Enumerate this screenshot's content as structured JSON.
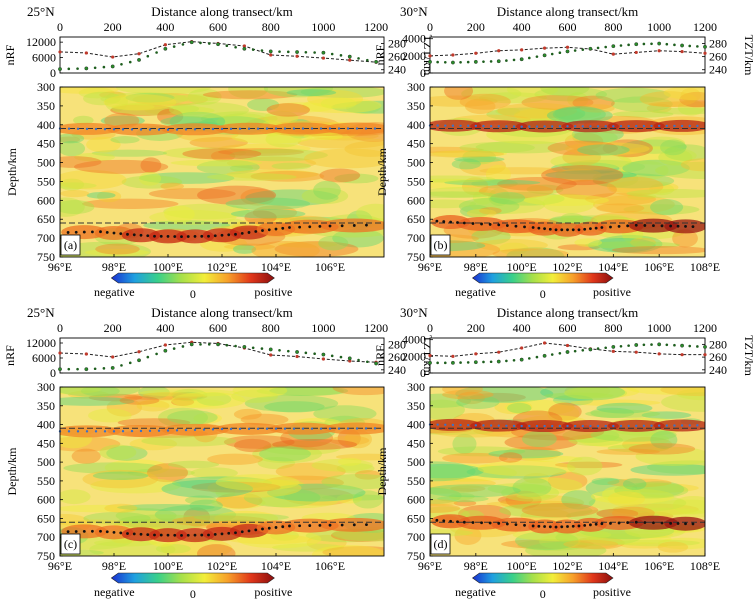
{
  "figure": {
    "colorbar": {
      "negative_label": "negative",
      "zero_label": "0",
      "positive_label": "positive",
      "colors": [
        "#1a2fd0",
        "#1fa0e0",
        "#39d08a",
        "#a6e04a",
        "#f2ee3a",
        "#f7a02a",
        "#e0361a",
        "#8a0e0e"
      ]
    },
    "colors": {
      "background": "#f7e27a",
      "axis": "#000000",
      "dash_line": "#333333",
      "nrf_line": "#222222",
      "tztdots_green": "#2a8c2a"
    }
  },
  "chart_data": [
    {
      "type": "heatmap",
      "panel_label": "(a)",
      "title": "25°N",
      "top_axis_label": "Distance along transect/km",
      "top_ticks": [
        0,
        200,
        400,
        600,
        800,
        1000,
        1200
      ],
      "top_xlim": [
        0,
        1230
      ],
      "nrf_ylabel": "nRF",
      "nrf_ticks": [
        0,
        6000,
        12000
      ],
      "nrf_tick_labels": [
        "0",
        "6000",
        "12000"
      ],
      "nrf_ylim": [
        0,
        14000
      ],
      "tzt_ylabel": "TZT/km",
      "tzt_ticks": [
        240,
        260,
        280
      ],
      "tzt_ylim": [
        235,
        290
      ],
      "nrf_series": [
        [
          0,
          8200
        ],
        [
          100,
          7800
        ],
        [
          200,
          6200
        ],
        [
          300,
          7500
        ],
        [
          400,
          11000
        ],
        [
          500,
          12200
        ],
        [
          600,
          11500
        ],
        [
          700,
          10500
        ],
        [
          800,
          7000
        ],
        [
          900,
          6500
        ],
        [
          1000,
          5800
        ],
        [
          1100,
          5000
        ],
        [
          1200,
          4200
        ]
      ],
      "tzt_series": [
        [
          0,
          241
        ],
        [
          100,
          242
        ],
        [
          200,
          245
        ],
        [
          300,
          255
        ],
        [
          400,
          272
        ],
        [
          500,
          282
        ],
        [
          600,
          279
        ],
        [
          700,
          272
        ],
        [
          800,
          268
        ],
        [
          900,
          267
        ],
        [
          1000,
          266
        ],
        [
          1100,
          260
        ],
        [
          1200,
          252
        ]
      ],
      "xlabel_ticks": [
        "96°E",
        "98°E",
        "100°E",
        "102°E",
        "104°E",
        "106°E"
      ],
      "xlim": [
        96,
        108
      ],
      "ylabel": "Depth/km",
      "depth_ticks": [
        300,
        350,
        400,
        450,
        500,
        550,
        600,
        650,
        700,
        750
      ],
      "depth_range": [
        300,
        750
      ],
      "d410_line": 410,
      "d660_line": 660,
      "d410_trace": [
        [
          96,
          410
        ],
        [
          98,
          412
        ],
        [
          100,
          413
        ],
        [
          102,
          411
        ],
        [
          104,
          410
        ],
        [
          106,
          410
        ],
        [
          108,
          410
        ]
      ],
      "d660_trace": [
        [
          96.3,
          685
        ],
        [
          97.5,
          683
        ],
        [
          98.5,
          690
        ],
        [
          99.5,
          695
        ],
        [
          100.5,
          696
        ],
        [
          101.5,
          695
        ],
        [
          102.5,
          690
        ],
        [
          103.5,
          680
        ],
        [
          104.5,
          672
        ],
        [
          106,
          668
        ],
        [
          107.8,
          665
        ]
      ]
    },
    {
      "type": "heatmap",
      "panel_label": "(b)",
      "title": "30°N",
      "top_axis_label": "Distance along transect/km",
      "top_ticks": [
        0,
        200,
        400,
        600,
        800,
        1000,
        1200
      ],
      "top_xlim": [
        0,
        1200
      ],
      "nrf_ylabel": "nRF",
      "nrf_ticks": [
        0,
        2000,
        4000
      ],
      "nrf_tick_labels": [
        "0",
        "2000",
        "4000"
      ],
      "nrf_ylim": [
        0,
        4200
      ],
      "tzt_ylabel": "TZT/km",
      "tzt_ticks": [
        240,
        260,
        280
      ],
      "tzt_ylim": [
        235,
        290
      ],
      "nrf_series": [
        [
          0,
          2000
        ],
        [
          100,
          2100
        ],
        [
          200,
          2300
        ],
        [
          300,
          2600
        ],
        [
          400,
          2700
        ],
        [
          500,
          2900
        ],
        [
          600,
          3000
        ],
        [
          700,
          2800
        ],
        [
          800,
          2200
        ],
        [
          900,
          2400
        ],
        [
          1000,
          2600
        ],
        [
          1100,
          2500
        ],
        [
          1200,
          2300
        ]
      ],
      "tzt_series": [
        [
          0,
          252
        ],
        [
          100,
          251
        ],
        [
          200,
          252
        ],
        [
          300,
          253
        ],
        [
          400,
          256
        ],
        [
          500,
          262
        ],
        [
          600,
          268
        ],
        [
          700,
          272
        ],
        [
          800,
          276
        ],
        [
          900,
          279
        ],
        [
          1000,
          280
        ],
        [
          1100,
          277
        ],
        [
          1200,
          275
        ]
      ],
      "xlabel_ticks": [
        "96°E",
        "98°E",
        "100°E",
        "102°E",
        "104°E",
        "106°E",
        "108°E"
      ],
      "xlim": [
        96,
        108
      ],
      "ylabel": "Depth/km",
      "depth_ticks": [
        300,
        350,
        400,
        450,
        500,
        550,
        600,
        650,
        700,
        750
      ],
      "depth_range": [
        300,
        750
      ],
      "d410_line": 410,
      "d660_line": 660,
      "d410_trace": [
        [
          96,
          402
        ],
        [
          98,
          403
        ],
        [
          100,
          405
        ],
        [
          102,
          404
        ],
        [
          104,
          404
        ],
        [
          106,
          403
        ],
        [
          108,
          403
        ]
      ],
      "d660_trace": [
        [
          96.3,
          655
        ],
        [
          97.5,
          660
        ],
        [
          99,
          665
        ],
        [
          100.5,
          672
        ],
        [
          101.5,
          678
        ],
        [
          102.5,
          678
        ],
        [
          103.5,
          672
        ],
        [
          105,
          666
        ],
        [
          106.5,
          668
        ],
        [
          107.8,
          670
        ]
      ]
    },
    {
      "type": "heatmap",
      "panel_label": "(c)",
      "title": "25°N",
      "top_axis_label": "Distance along transect/km",
      "top_ticks": [
        0,
        200,
        400,
        600,
        800,
        1000,
        1200
      ],
      "top_xlim": [
        0,
        1230
      ],
      "nrf_ylabel": "nRF",
      "nrf_ticks": [
        0,
        6000,
        12000
      ],
      "nrf_tick_labels": [
        "0",
        "6000",
        "12000"
      ],
      "nrf_ylim": [
        0,
        14000
      ],
      "tzt_ylabel": "TZT/km",
      "tzt_ticks": [
        240,
        260,
        280
      ],
      "tzt_ylim": [
        235,
        290
      ],
      "nrf_series": [
        [
          0,
          8000
        ],
        [
          100,
          7600
        ],
        [
          200,
          6400
        ],
        [
          300,
          8500
        ],
        [
          400,
          11200
        ],
        [
          500,
          12300
        ],
        [
          600,
          11800
        ],
        [
          700,
          10000
        ],
        [
          800,
          7200
        ],
        [
          900,
          6600
        ],
        [
          1000,
          5600
        ],
        [
          1100,
          4800
        ],
        [
          1200,
          4300
        ]
      ],
      "tzt_series": [
        [
          0,
          241
        ],
        [
          100,
          241
        ],
        [
          200,
          243
        ],
        [
          300,
          255
        ],
        [
          400,
          270
        ],
        [
          500,
          280
        ],
        [
          600,
          280
        ],
        [
          700,
          276
        ],
        [
          800,
          272
        ],
        [
          900,
          268
        ],
        [
          1000,
          264
        ],
        [
          1100,
          258
        ],
        [
          1200,
          250
        ]
      ],
      "xlabel_ticks": [
        "96°E",
        "98°E",
        "100°E",
        "102°E",
        "104°E",
        "106°E"
      ],
      "xlim": [
        96,
        108
      ],
      "ylabel": "Depth/km",
      "depth_ticks": [
        300,
        350,
        400,
        450,
        500,
        550,
        600,
        650,
        700,
        750
      ],
      "depth_range": [
        300,
        750
      ],
      "d410_line": 410,
      "d660_line": 660,
      "d410_trace": [
        [
          96,
          418
        ],
        [
          98,
          418
        ],
        [
          100,
          416
        ],
        [
          102,
          412
        ],
        [
          104,
          411
        ],
        [
          106,
          411
        ],
        [
          108,
          410
        ]
      ],
      "d660_trace": [
        [
          96.3,
          685
        ],
        [
          97.5,
          684
        ],
        [
          98.5,
          690
        ],
        [
          99.5,
          694
        ],
        [
          100.5,
          695
        ],
        [
          101.5,
          694
        ],
        [
          102.5,
          688
        ],
        [
          103.5,
          678
        ],
        [
          104.5,
          670
        ],
        [
          106,
          668
        ],
        [
          107.8,
          666
        ]
      ]
    },
    {
      "type": "heatmap",
      "panel_label": "(d)",
      "title": "30°N",
      "top_axis_label": "Distance along transect/km",
      "top_ticks": [
        0,
        200,
        400,
        600,
        800,
        1000,
        1200
      ],
      "top_xlim": [
        0,
        1200
      ],
      "nrf_ylabel": "nRF",
      "nrf_ticks": [
        0,
        2000,
        4000
      ],
      "nrf_tick_labels": [
        "0",
        "2000",
        "4000"
      ],
      "nrf_ylim": [
        0,
        4200
      ],
      "tzt_ylabel": "TZT/km",
      "tzt_ticks": [
        240,
        260,
        280
      ],
      "tzt_ylim": [
        235,
        290
      ],
      "nrf_series": [
        [
          0,
          2100
        ],
        [
          100,
          2000
        ],
        [
          200,
          2300
        ],
        [
          300,
          2500
        ],
        [
          400,
          3000
        ],
        [
          500,
          3600
        ],
        [
          600,
          3300
        ],
        [
          700,
          2900
        ],
        [
          800,
          2600
        ],
        [
          900,
          2500
        ],
        [
          1000,
          2300
        ],
        [
          1100,
          2200
        ],
        [
          1200,
          2200
        ]
      ],
      "tzt_series": [
        [
          0,
          251
        ],
        [
          100,
          251
        ],
        [
          200,
          252
        ],
        [
          300,
          253
        ],
        [
          400,
          256
        ],
        [
          500,
          262
        ],
        [
          600,
          268
        ],
        [
          700,
          272
        ],
        [
          800,
          276
        ],
        [
          900,
          279
        ],
        [
          1000,
          280
        ],
        [
          1100,
          278
        ],
        [
          1200,
          276
        ]
      ],
      "xlabel_ticks": [
        "96°E",
        "98°E",
        "100°E",
        "102°E",
        "104°E",
        "106°E",
        "108°E"
      ],
      "xlim": [
        96,
        108
      ],
      "ylabel": "Depth/km",
      "depth_ticks": [
        300,
        350,
        400,
        450,
        500,
        550,
        600,
        650,
        700,
        750
      ],
      "depth_range": [
        300,
        750
      ],
      "d410_line": 410,
      "d660_line": 660,
      "d410_trace": [
        [
          96,
          400
        ],
        [
          98,
          402
        ],
        [
          100,
          404
        ],
        [
          102,
          404
        ],
        [
          104,
          404
        ],
        [
          106,
          403
        ],
        [
          108,
          402
        ]
      ],
      "d660_trace": [
        [
          96.3,
          655
        ],
        [
          97.5,
          660
        ],
        [
          99,
          663
        ],
        [
          100.5,
          670
        ],
        [
          101.5,
          673
        ],
        [
          102.5,
          670
        ],
        [
          103.5,
          664
        ],
        [
          105,
          660
        ],
        [
          106.5,
          663
        ],
        [
          107.8,
          665
        ]
      ]
    }
  ]
}
